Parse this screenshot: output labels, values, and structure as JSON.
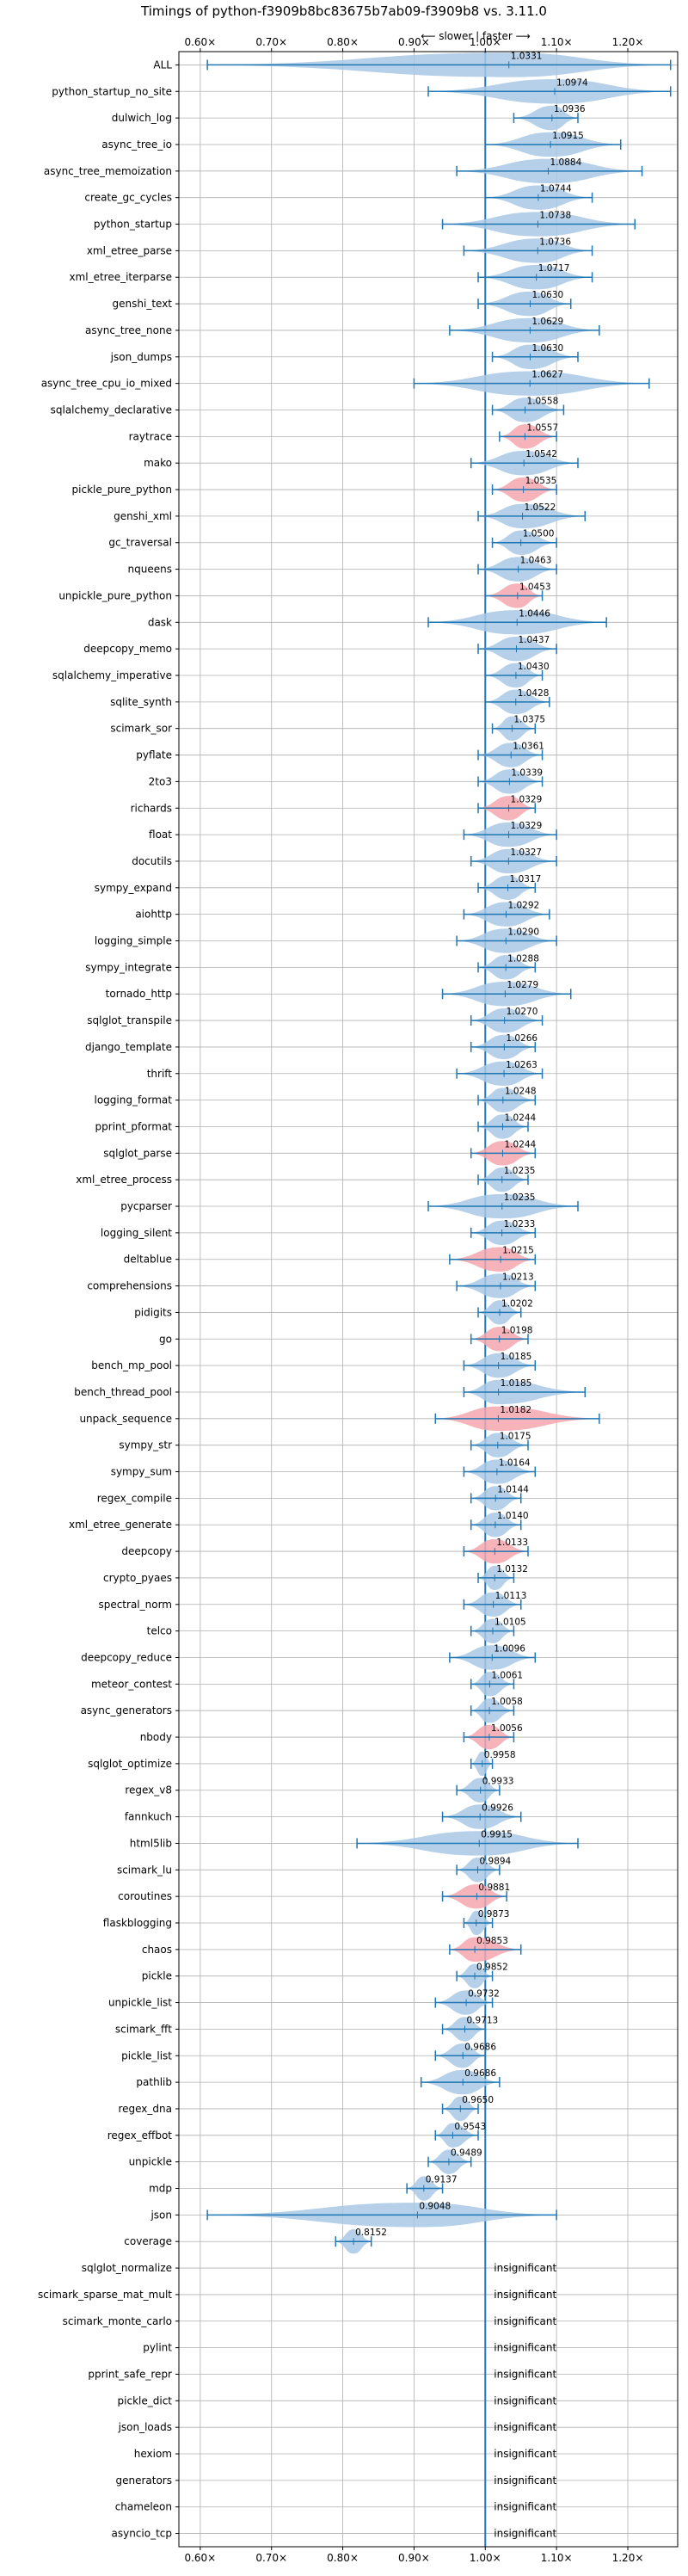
{
  "chart_data": {
    "type": "violin",
    "title": "Timings of python-f3909b8bc83675b7ab09-f3909b8 vs. 3.11.0",
    "direction_label": "⟵ slower | faster ⟶",
    "xlim": [
      0.57,
      1.27
    ],
    "xticks": [
      0.6,
      0.7,
      0.8,
      0.9,
      1.0,
      1.1,
      1.2
    ],
    "xtick_labels": [
      "0.60×",
      "0.70×",
      "0.80×",
      "0.90×",
      "1.00×",
      "1.10×",
      "1.20×"
    ],
    "reference_x": 1.0,
    "grid": true,
    "colors": {
      "normal": "#a8c8e4",
      "highlight": "#f4a6ae",
      "line": "#1f77b4",
      "grid": "#b0b0b0"
    },
    "insignificant_label": "insignificant",
    "benchmarks": [
      {
        "name": "ALL",
        "value": 1.0331,
        "min": 0.61,
        "max": 1.26,
        "hl": false
      },
      {
        "name": "python_startup_no_site",
        "value": 1.0974,
        "min": 0.92,
        "max": 1.26,
        "hl": false
      },
      {
        "name": "dulwich_log",
        "value": 1.0936,
        "min": 1.04,
        "max": 1.13,
        "hl": false
      },
      {
        "name": "async_tree_io",
        "value": 1.0915,
        "min": 1.0,
        "max": 1.19,
        "hl": false
      },
      {
        "name": "async_tree_memoization",
        "value": 1.0884,
        "min": 0.96,
        "max": 1.22,
        "hl": false
      },
      {
        "name": "create_gc_cycles",
        "value": 1.0744,
        "min": 1.0,
        "max": 1.15,
        "hl": false
      },
      {
        "name": "python_startup",
        "value": 1.0738,
        "min": 0.94,
        "max": 1.21,
        "hl": false
      },
      {
        "name": "xml_etree_parse",
        "value": 1.0736,
        "min": 0.97,
        "max": 1.15,
        "hl": false
      },
      {
        "name": "xml_etree_iterparse",
        "value": 1.0717,
        "min": 0.99,
        "max": 1.15,
        "hl": false
      },
      {
        "name": "genshi_text",
        "value": 1.063,
        "min": 0.99,
        "max": 1.12,
        "hl": false
      },
      {
        "name": "async_tree_none",
        "value": 1.0629,
        "min": 0.95,
        "max": 1.16,
        "hl": false
      },
      {
        "name": "json_dumps",
        "value": 1.063,
        "min": 1.01,
        "max": 1.13,
        "hl": false
      },
      {
        "name": "async_tree_cpu_io_mixed",
        "value": 1.0627,
        "min": 0.9,
        "max": 1.23,
        "hl": false
      },
      {
        "name": "sqlalchemy_declarative",
        "value": 1.0558,
        "min": 1.01,
        "max": 1.11,
        "hl": false
      },
      {
        "name": "raytrace",
        "value": 1.0557,
        "min": 1.02,
        "max": 1.1,
        "hl": true
      },
      {
        "name": "mako",
        "value": 1.0542,
        "min": 0.98,
        "max": 1.13,
        "hl": false
      },
      {
        "name": "pickle_pure_python",
        "value": 1.0535,
        "min": 1.01,
        "max": 1.1,
        "hl": true
      },
      {
        "name": "genshi_xml",
        "value": 1.0522,
        "min": 0.99,
        "max": 1.14,
        "hl": false
      },
      {
        "name": "gc_traversal",
        "value": 1.05,
        "min": 1.01,
        "max": 1.1,
        "hl": false
      },
      {
        "name": "nqueens",
        "value": 1.0463,
        "min": 0.99,
        "max": 1.1,
        "hl": false
      },
      {
        "name": "unpickle_pure_python",
        "value": 1.0453,
        "min": 1.0,
        "max": 1.08,
        "hl": true
      },
      {
        "name": "dask",
        "value": 1.0446,
        "min": 0.92,
        "max": 1.17,
        "hl": false
      },
      {
        "name": "deepcopy_memo",
        "value": 1.0437,
        "min": 0.99,
        "max": 1.1,
        "hl": false
      },
      {
        "name": "sqlalchemy_imperative",
        "value": 1.043,
        "min": 1.0,
        "max": 1.08,
        "hl": false
      },
      {
        "name": "sqlite_synth",
        "value": 1.0428,
        "min": 1.0,
        "max": 1.09,
        "hl": false
      },
      {
        "name": "scimark_sor",
        "value": 1.0375,
        "min": 1.01,
        "max": 1.07,
        "hl": false
      },
      {
        "name": "pyflate",
        "value": 1.0361,
        "min": 0.99,
        "max": 1.08,
        "hl": false
      },
      {
        "name": "2to3",
        "value": 1.0339,
        "min": 0.99,
        "max": 1.08,
        "hl": false
      },
      {
        "name": "richards",
        "value": 1.0329,
        "min": 0.99,
        "max": 1.07,
        "hl": true
      },
      {
        "name": "float",
        "value": 1.0329,
        "min": 0.97,
        "max": 1.1,
        "hl": false
      },
      {
        "name": "docutils",
        "value": 1.0327,
        "min": 0.98,
        "max": 1.1,
        "hl": false
      },
      {
        "name": "sympy_expand",
        "value": 1.0317,
        "min": 0.99,
        "max": 1.07,
        "hl": false
      },
      {
        "name": "aiohttp",
        "value": 1.0292,
        "min": 0.97,
        "max": 1.09,
        "hl": false
      },
      {
        "name": "logging_simple",
        "value": 1.029,
        "min": 0.96,
        "max": 1.1,
        "hl": false
      },
      {
        "name": "sympy_integrate",
        "value": 1.0288,
        "min": 0.99,
        "max": 1.07,
        "hl": false
      },
      {
        "name": "tornado_http",
        "value": 1.0279,
        "min": 0.94,
        "max": 1.12,
        "hl": false
      },
      {
        "name": "sqlglot_transpile",
        "value": 1.027,
        "min": 0.98,
        "max": 1.08,
        "hl": false
      },
      {
        "name": "django_template",
        "value": 1.0266,
        "min": 0.98,
        "max": 1.07,
        "hl": false
      },
      {
        "name": "thrift",
        "value": 1.0263,
        "min": 0.96,
        "max": 1.08,
        "hl": false
      },
      {
        "name": "logging_format",
        "value": 1.0248,
        "min": 0.99,
        "max": 1.07,
        "hl": false
      },
      {
        "name": "pprint_pformat",
        "value": 1.0244,
        "min": 0.99,
        "max": 1.06,
        "hl": false
      },
      {
        "name": "sqlglot_parse",
        "value": 1.0244,
        "min": 0.98,
        "max": 1.07,
        "hl": true
      },
      {
        "name": "xml_etree_process",
        "value": 1.0235,
        "min": 0.99,
        "max": 1.06,
        "hl": false
      },
      {
        "name": "pycparser",
        "value": 1.0235,
        "min": 0.92,
        "max": 1.13,
        "hl": false
      },
      {
        "name": "logging_silent",
        "value": 1.0233,
        "min": 0.98,
        "max": 1.07,
        "hl": false
      },
      {
        "name": "deltablue",
        "value": 1.0215,
        "min": 0.95,
        "max": 1.07,
        "hl": true
      },
      {
        "name": "comprehensions",
        "value": 1.0213,
        "min": 0.96,
        "max": 1.07,
        "hl": false
      },
      {
        "name": "pidigits",
        "value": 1.0202,
        "min": 0.99,
        "max": 1.05,
        "hl": false
      },
      {
        "name": "go",
        "value": 1.0198,
        "min": 0.98,
        "max": 1.06,
        "hl": true
      },
      {
        "name": "bench_mp_pool",
        "value": 1.0185,
        "min": 0.97,
        "max": 1.07,
        "hl": false
      },
      {
        "name": "bench_thread_pool",
        "value": 1.0185,
        "min": 0.97,
        "max": 1.14,
        "hl": false
      },
      {
        "name": "unpack_sequence",
        "value": 1.0182,
        "min": 0.93,
        "max": 1.16,
        "hl": true
      },
      {
        "name": "sympy_str",
        "value": 1.0175,
        "min": 0.98,
        "max": 1.06,
        "hl": false
      },
      {
        "name": "sympy_sum",
        "value": 1.0164,
        "min": 0.97,
        "max": 1.07,
        "hl": false
      },
      {
        "name": "regex_compile",
        "value": 1.0144,
        "min": 0.98,
        "max": 1.05,
        "hl": false
      },
      {
        "name": "xml_etree_generate",
        "value": 1.014,
        "min": 0.98,
        "max": 1.05,
        "hl": false
      },
      {
        "name": "deepcopy",
        "value": 1.0133,
        "min": 0.97,
        "max": 1.06,
        "hl": true
      },
      {
        "name": "crypto_pyaes",
        "value": 1.0132,
        "min": 0.99,
        "max": 1.04,
        "hl": false
      },
      {
        "name": "spectral_norm",
        "value": 1.0113,
        "min": 0.97,
        "max": 1.05,
        "hl": false
      },
      {
        "name": "telco",
        "value": 1.0105,
        "min": 0.98,
        "max": 1.04,
        "hl": false
      },
      {
        "name": "deepcopy_reduce",
        "value": 1.0096,
        "min": 0.95,
        "max": 1.07,
        "hl": false
      },
      {
        "name": "meteor_contest",
        "value": 1.0061,
        "min": 0.98,
        "max": 1.04,
        "hl": false
      },
      {
        "name": "async_generators",
        "value": 1.0058,
        "min": 0.98,
        "max": 1.04,
        "hl": false
      },
      {
        "name": "nbody",
        "value": 1.0056,
        "min": 0.97,
        "max": 1.04,
        "hl": true
      },
      {
        "name": "sqlglot_optimize",
        "value": 0.9958,
        "min": 0.98,
        "max": 1.01,
        "hl": false
      },
      {
        "name": "regex_v8",
        "value": 0.9933,
        "min": 0.96,
        "max": 1.02,
        "hl": false
      },
      {
        "name": "fannkuch",
        "value": 0.9926,
        "min": 0.94,
        "max": 1.05,
        "hl": false
      },
      {
        "name": "html5lib",
        "value": 0.9915,
        "min": 0.82,
        "max": 1.13,
        "hl": false
      },
      {
        "name": "scimark_lu",
        "value": 0.9894,
        "min": 0.96,
        "max": 1.02,
        "hl": false
      },
      {
        "name": "coroutines",
        "value": 0.9881,
        "min": 0.94,
        "max": 1.03,
        "hl": true
      },
      {
        "name": "flaskblogging",
        "value": 0.9873,
        "min": 0.97,
        "max": 1.01,
        "hl": false
      },
      {
        "name": "chaos",
        "value": 0.9853,
        "min": 0.95,
        "max": 1.05,
        "hl": true
      },
      {
        "name": "pickle",
        "value": 0.9852,
        "min": 0.96,
        "max": 1.01,
        "hl": false
      },
      {
        "name": "unpickle_list",
        "value": 0.9732,
        "min": 0.93,
        "max": 1.01,
        "hl": false
      },
      {
        "name": "scimark_fft",
        "value": 0.9713,
        "min": 0.94,
        "max": 1.0,
        "hl": false
      },
      {
        "name": "pickle_list",
        "value": 0.9686,
        "min": 0.93,
        "max": 1.0,
        "hl": false
      },
      {
        "name": "pathlib",
        "value": 0.9686,
        "min": 0.91,
        "max": 1.02,
        "hl": false
      },
      {
        "name": "regex_dna",
        "value": 0.965,
        "min": 0.94,
        "max": 0.99,
        "hl": false
      },
      {
        "name": "regex_effbot",
        "value": 0.9543,
        "min": 0.93,
        "max": 0.99,
        "hl": false
      },
      {
        "name": "unpickle",
        "value": 0.9489,
        "min": 0.92,
        "max": 0.98,
        "hl": false
      },
      {
        "name": "mdp",
        "value": 0.9137,
        "min": 0.89,
        "max": 0.94,
        "hl": false
      },
      {
        "name": "json",
        "value": 0.9048,
        "min": 0.61,
        "max": 1.1,
        "hl": false
      },
      {
        "name": "coverage",
        "value": 0.8152,
        "min": 0.79,
        "max": 0.84,
        "hl": false
      },
      {
        "name": "sqlglot_normalize",
        "value": null
      },
      {
        "name": "scimark_sparse_mat_mult",
        "value": null
      },
      {
        "name": "scimark_monte_carlo",
        "value": null
      },
      {
        "name": "pylint",
        "value": null
      },
      {
        "name": "pprint_safe_repr",
        "value": null
      },
      {
        "name": "pickle_dict",
        "value": null
      },
      {
        "name": "json_loads",
        "value": null
      },
      {
        "name": "hexiom",
        "value": null
      },
      {
        "name": "generators",
        "value": null
      },
      {
        "name": "chameleon",
        "value": null
      },
      {
        "name": "asyncio_tcp",
        "value": null
      }
    ]
  }
}
